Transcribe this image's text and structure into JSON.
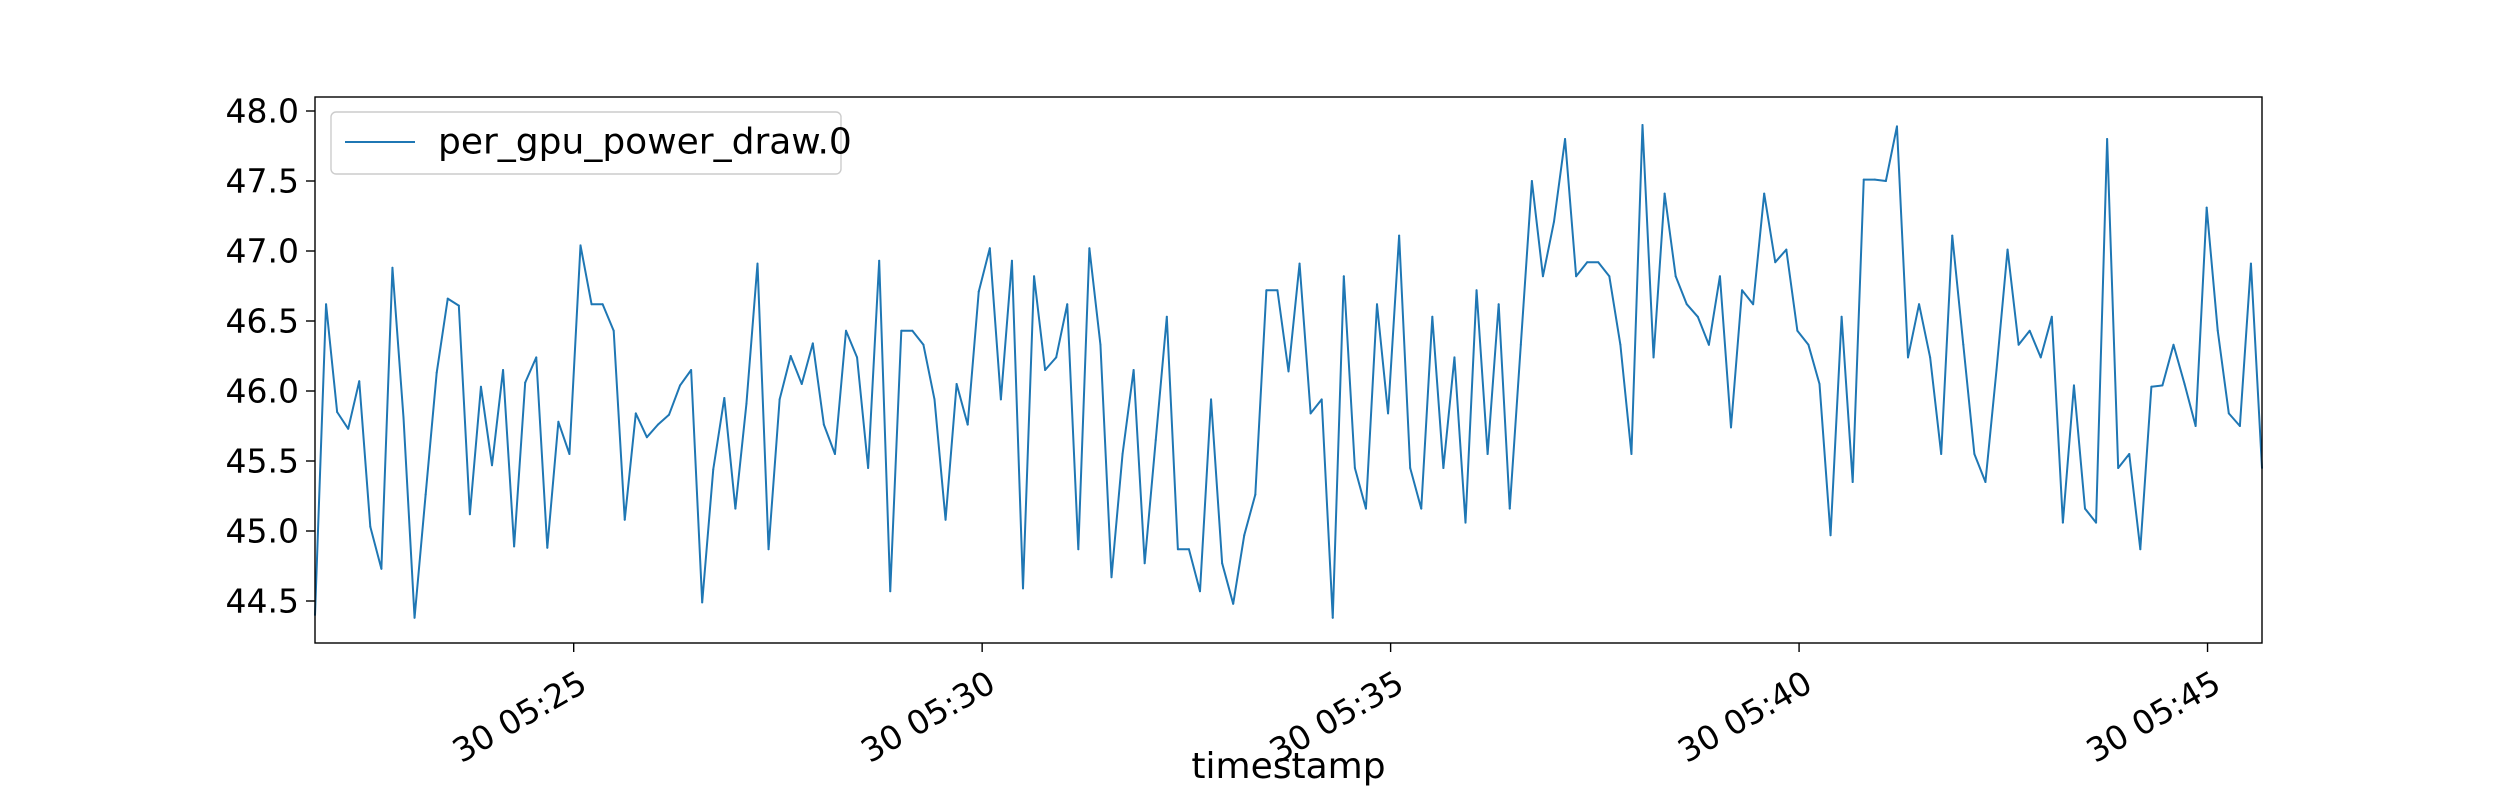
{
  "chart_data": {
    "type": "line",
    "title": "",
    "xlabel": "timestamp",
    "ylabel": "",
    "x_start": "05:21:50",
    "x_end": "05:45:40",
    "xlim": [
      "05:21:50",
      "05:45:40"
    ],
    "ylim": [
      44.2,
      48.1
    ],
    "x_ticks": [
      {
        "time": "05:25:00",
        "label": "30 05:25"
      },
      {
        "time": "05:30:00",
        "label": "30 05:30"
      },
      {
        "time": "05:35:00",
        "label": "30 05:35"
      },
      {
        "time": "05:40:00",
        "label": "30 05:40"
      },
      {
        "time": "05:45:00",
        "label": "30 05:45"
      }
    ],
    "y_ticks": [
      44.5,
      45.0,
      45.5,
      46.0,
      46.5,
      47.0,
      47.5,
      48.0
    ],
    "y_tick_labels": [
      "44.5",
      "45.0",
      "45.5",
      "46.0",
      "46.5",
      "47.0",
      "47.5",
      "48.0"
    ],
    "grid": false,
    "legend_position": "top-left",
    "series": [
      {
        "name": "per_gpu_power_draw.0",
        "color": "#1f77b4",
        "values": [
          44.4,
          46.62,
          45.85,
          45.73,
          46.07,
          45.03,
          44.73,
          46.88,
          45.81,
          44.38,
          45.26,
          46.13,
          46.66,
          46.61,
          45.12,
          46.03,
          45.47,
          46.15,
          44.89,
          46.06,
          46.24,
          44.88,
          45.78,
          45.55,
          47.04,
          46.62,
          46.62,
          46.43,
          45.08,
          45.84,
          45.67,
          45.76,
          45.83,
          46.04,
          46.15,
          44.49,
          45.44,
          45.95,
          45.16,
          45.91,
          46.91,
          44.87,
          45.94,
          46.25,
          46.05,
          46.34,
          45.76,
          45.55,
          46.43,
          46.24,
          45.45,
          46.93,
          44.57,
          46.43,
          46.43,
          46.33,
          45.94,
          45.08,
          46.05,
          45.76,
          46.71,
          47.02,
          45.94,
          46.93,
          44.59,
          46.82,
          46.15,
          46.24,
          46.62,
          44.87,
          47.02,
          46.33,
          44.67,
          45.55,
          46.15,
          44.77,
          45.65,
          46.53,
          44.87,
          44.87,
          44.57,
          45.94,
          44.77,
          44.48,
          44.97,
          45.26,
          46.72,
          46.72,
          46.14,
          46.91,
          45.84,
          45.94,
          44.38,
          46.82,
          45.45,
          45.16,
          46.62,
          45.84,
          47.11,
          45.45,
          45.16,
          46.53,
          45.45,
          46.24,
          45.06,
          46.72,
          45.55,
          46.62,
          45.16,
          46.33,
          47.5,
          46.82,
          47.21,
          47.8,
          46.82,
          46.92,
          46.92,
          46.82,
          46.33,
          45.55,
          47.9,
          46.24,
          47.41,
          46.82,
          46.62,
          46.53,
          46.33,
          46.82,
          45.74,
          46.72,
          46.62,
          47.41,
          46.92,
          47.01,
          46.43,
          46.33,
          46.05,
          44.97,
          46.53,
          45.35,
          47.51,
          47.51,
          47.5,
          47.89,
          46.24,
          46.62,
          46.24,
          45.55,
          47.11,
          46.33,
          45.55,
          45.35,
          46.15,
          47.01,
          46.33,
          46.43,
          46.24,
          46.53,
          45.06,
          46.04,
          45.16,
          45.06,
          47.8,
          45.45,
          45.55,
          44.87,
          46.03,
          46.04,
          46.33,
          46.05,
          45.75,
          47.31,
          46.43,
          45.84,
          45.75,
          46.91,
          45.45
        ]
      }
    ]
  }
}
